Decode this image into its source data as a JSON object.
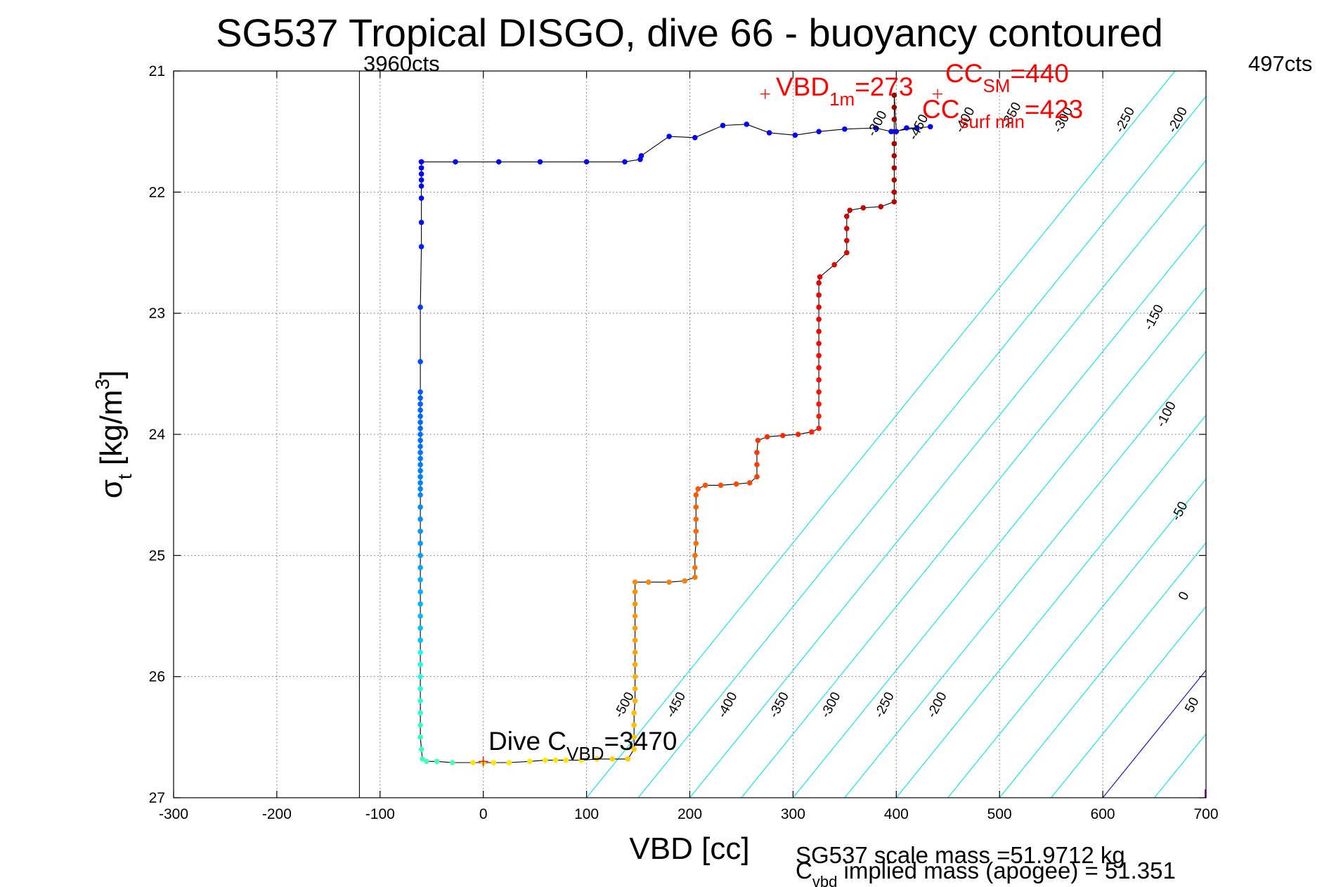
{
  "chart_data": {
    "type": "scatter",
    "title": "SG537 Tropical DISGO, dive 66 - buoyancy contoured",
    "xlabel": "VBD [cc]",
    "ylabel": "σt [kg/m3]",
    "ylabel_main": "σ",
    "ylabel_sub": "t",
    "ylabel_rest": " [kg/m",
    "ylabel_sup": "3",
    "ylabel_end": "]",
    "xlim": [
      -300,
      700
    ],
    "ylim": [
      21,
      27
    ],
    "y_reversed": true,
    "grid": true,
    "xticks": [
      -300,
      -200,
      -100,
      0,
      100,
      200,
      300,
      400,
      500,
      600,
      700
    ],
    "yticks": [
      21,
      22,
      23,
      24,
      25,
      26,
      27
    ],
    "vbd_limit_line_x": -120,
    "vbd_max_x": 700,
    "contours": {
      "levels": [
        -500,
        -450,
        -400,
        -350,
        -300,
        -250,
        -200,
        -150,
        -100,
        -50,
        0,
        50
      ],
      "zero_color": "#1a1ab8",
      "line_color": "#00e5ee",
      "bottom_labels": [
        {
          "text": "-500",
          "x": 140,
          "y": 26.25
        },
        {
          "text": "-450",
          "x": 190,
          "y": 26.25
        },
        {
          "text": "-400",
          "x": 240,
          "y": 26.25
        },
        {
          "text": "-350",
          "x": 290,
          "y": 26.25
        },
        {
          "text": "-300",
          "x": 340,
          "y": 26.25
        },
        {
          "text": "-250",
          "x": 392,
          "y": 26.25
        },
        {
          "text": "-200",
          "x": 443,
          "y": 26.25
        }
      ],
      "right_labels": [
        {
          "text": "-300",
          "x": 385,
          "y": 21.45
        },
        {
          "text": "-450",
          "x": 425,
          "y": 21.48
        },
        {
          "text": "-400",
          "x": 470,
          "y": 21.42
        },
        {
          "text": "-350",
          "x": 515,
          "y": 21.38
        },
        {
          "text": "-300",
          "x": 565,
          "y": 21.42
        },
        {
          "text": "-250",
          "x": 625,
          "y": 21.42
        },
        {
          "text": "-200",
          "x": 676,
          "y": 21.42
        },
        {
          "text": "-150",
          "x": 653,
          "y": 23.05
        },
        {
          "text": "-100",
          "x": 665,
          "y": 23.85
        },
        {
          "text": "-50",
          "x": 678,
          "y": 24.65
        },
        {
          "text": "0",
          "x": 682,
          "y": 25.35
        },
        {
          "text": "50",
          "x": 690,
          "y": 26.25
        }
      ]
    },
    "annotations": {
      "cts_left": "3960cts",
      "cts_right": "497cts",
      "vbd1m_main": "VBD",
      "vbd1m_sub": "1m",
      "vbd1m_val": "=273",
      "ccsm_main": "CC",
      "ccsm_sub": "SM",
      "ccsm_val": "=440",
      "ccsurf_main": "CC",
      "ccsurf_sub": "surf min",
      "ccsurf_val": "=423",
      "dive_main": "Dive C",
      "dive_sub": "VBD",
      "dive_val": "=3470",
      "marker_vbd1m": {
        "x": 273,
        "y": 21.19
      },
      "marker_ccsm": {
        "x": 440,
        "y": 21.19
      },
      "marker_dive": {
        "x": 0,
        "y": 26.7
      }
    },
    "footer": {
      "line1": "SG537 scale mass =51.9712 kg",
      "line2_main": "C",
      "line2_sub": "vbd",
      "line2_rest": " implied mass (apogee) = 51.351"
    },
    "series": [
      {
        "color_scale": "jet",
        "points": [
          [
            -60,
            21.75
          ],
          [
            -60,
            21.8
          ],
          [
            -60,
            21.85
          ],
          [
            -60,
            21.9
          ],
          [
            -60,
            21.95
          ],
          [
            -60,
            22.05
          ],
          [
            -60,
            22.25
          ],
          [
            -60,
            22.45
          ],
          [
            -61,
            22.95
          ],
          [
            -61,
            23.4
          ],
          [
            -61,
            23.65
          ],
          [
            -61,
            23.7
          ],
          [
            -61,
            23.75
          ],
          [
            -61,
            23.8
          ],
          [
            -61,
            23.85
          ],
          [
            -61,
            23.9
          ],
          [
            -61,
            23.95
          ],
          [
            -61,
            24.0
          ],
          [
            -61,
            24.05
          ],
          [
            -61,
            24.1
          ],
          [
            -61,
            24.15
          ],
          [
            -61,
            24.2
          ],
          [
            -61,
            24.25
          ],
          [
            -61,
            24.3
          ],
          [
            -61,
            24.35
          ],
          [
            -61,
            24.4
          ],
          [
            -61,
            24.45
          ],
          [
            -61,
            24.5
          ],
          [
            -61,
            24.6
          ],
          [
            -61,
            24.7
          ],
          [
            -61,
            24.8
          ],
          [
            -61,
            24.9
          ],
          [
            -61,
            25.0
          ],
          [
            -61,
            25.1
          ],
          [
            -61,
            25.2
          ],
          [
            -61,
            25.3
          ],
          [
            -61,
            25.4
          ],
          [
            -61,
            25.5
          ],
          [
            -61,
            25.6
          ],
          [
            -61,
            25.7
          ],
          [
            -61,
            25.8
          ],
          [
            -61,
            25.9
          ],
          [
            -61,
            26.0
          ],
          [
            -61,
            26.1
          ],
          [
            -61,
            26.2
          ],
          [
            -61,
            26.3
          ],
          [
            -61,
            26.4
          ],
          [
            -61,
            26.5
          ],
          [
            -60,
            26.6
          ],
          [
            -59,
            26.68
          ],
          [
            -55,
            26.7
          ],
          [
            -45,
            26.7
          ],
          [
            -30,
            26.71
          ],
          [
            -10,
            26.71
          ],
          [
            0,
            26.71
          ],
          [
            10,
            26.71
          ],
          [
            25,
            26.71
          ],
          [
            45,
            26.7
          ],
          [
            60,
            26.69
          ],
          [
            70,
            26.69
          ],
          [
            80,
            26.69
          ],
          [
            95,
            26.69
          ],
          [
            110,
            26.68
          ],
          [
            125,
            26.68
          ],
          [
            140,
            26.68
          ],
          [
            146,
            26.6
          ],
          [
            146,
            26.5
          ],
          [
            146,
            26.4
          ],
          [
            146,
            26.3
          ],
          [
            147,
            26.2
          ],
          [
            147,
            26.1
          ],
          [
            147,
            26.0
          ],
          [
            147,
            25.9
          ],
          [
            147,
            25.8
          ],
          [
            147,
            25.7
          ],
          [
            147,
            25.6
          ],
          [
            147,
            25.5
          ],
          [
            147,
            25.4
          ],
          [
            147,
            25.3
          ],
          [
            147,
            25.22
          ],
          [
            160,
            25.22
          ],
          [
            180,
            25.22
          ],
          [
            195,
            25.21
          ],
          [
            205,
            25.18
          ],
          [
            205,
            25.1
          ],
          [
            205,
            25.0
          ],
          [
            206,
            24.9
          ],
          [
            206,
            24.8
          ],
          [
            206,
            24.7
          ],
          [
            206,
            24.6
          ],
          [
            206,
            24.5
          ],
          [
            208,
            24.45
          ],
          [
            215,
            24.42
          ],
          [
            230,
            24.42
          ],
          [
            245,
            24.41
          ],
          [
            258,
            24.4
          ],
          [
            265,
            24.35
          ],
          [
            265,
            24.25
          ],
          [
            265,
            24.15
          ],
          [
            266,
            24.05
          ],
          [
            275,
            24.02
          ],
          [
            290,
            24.01
          ],
          [
            305,
            24.0
          ],
          [
            318,
            23.98
          ],
          [
            325,
            23.95
          ],
          [
            325,
            23.85
          ],
          [
            325,
            23.75
          ],
          [
            325,
            23.65
          ],
          [
            325,
            23.55
          ],
          [
            325,
            23.45
          ],
          [
            325,
            23.35
          ],
          [
            325,
            23.25
          ],
          [
            325,
            23.15
          ],
          [
            325,
            23.05
          ],
          [
            325,
            22.95
          ],
          [
            325,
            22.85
          ],
          [
            325,
            22.75
          ],
          [
            326,
            22.7
          ],
          [
            340,
            22.6
          ],
          [
            352,
            22.5
          ],
          [
            352,
            22.4
          ],
          [
            352,
            22.3
          ],
          [
            352,
            22.2
          ],
          [
            355,
            22.15
          ],
          [
            368,
            22.13
          ],
          [
            385,
            22.12
          ],
          [
            398,
            22.08
          ],
          [
            398,
            22.0
          ],
          [
            398,
            21.9
          ],
          [
            398,
            21.8
          ],
          [
            398,
            21.7
          ],
          [
            398,
            21.6
          ],
          [
            398,
            21.5
          ],
          [
            398,
            21.4
          ],
          [
            398,
            21.3
          ],
          [
            398,
            21.2
          ],
          [
            400,
            21.5
          ],
          [
            410,
            21.47
          ],
          [
            420,
            21.47
          ],
          [
            433,
            21.46
          ],
          [
            420,
            21.47
          ],
          [
            395,
            21.5
          ],
          [
            380,
            21.47
          ],
          [
            350,
            21.48
          ],
          [
            325,
            21.5
          ],
          [
            302,
            21.53
          ],
          [
            277,
            21.51
          ],
          [
            255,
            21.44
          ],
          [
            232,
            21.45
          ],
          [
            205,
            21.55
          ],
          [
            180,
            21.54
          ],
          [
            153,
            21.7
          ],
          [
            152,
            21.73
          ],
          [
            137,
            21.75
          ],
          [
            100,
            21.75
          ],
          [
            55,
            21.75
          ],
          [
            15,
            21.75
          ],
          [
            -27,
            21.75
          ],
          [
            -60,
            21.75
          ]
        ]
      }
    ]
  }
}
